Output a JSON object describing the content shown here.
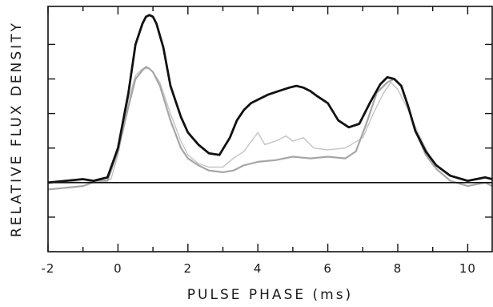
{
  "chart_data": {
    "type": "line",
    "title": "",
    "xlabel": "PULSE PHASE (ms)",
    "ylabel": "RELATIVE FLUX DENSITY",
    "xlim": [
      -2,
      10.7
    ],
    "ylim": [
      -2,
      5.1
    ],
    "x_ticks": [
      -2,
      0,
      2,
      4,
      6,
      8,
      10
    ],
    "x_tick_labels": [
      "-2",
      "0",
      "2",
      "4",
      "6",
      "8",
      "10"
    ],
    "y_ticks": [
      -1,
      0,
      1,
      2,
      3,
      4
    ],
    "baseline": 0,
    "grid": false,
    "legend": "none",
    "series": [
      {
        "color": "#111111",
        "x": [
          -2.0,
          -1.5,
          -1.0,
          -0.7,
          -0.3,
          0.0,
          0.3,
          0.5,
          0.7,
          0.8,
          0.9,
          1.0,
          1.1,
          1.3,
          1.5,
          1.8,
          2.0,
          2.3,
          2.6,
          2.9,
          3.2,
          3.4,
          3.6,
          3.8,
          4.0,
          4.3,
          4.6,
          4.9,
          5.1,
          5.3,
          5.5,
          5.7,
          6.0,
          6.3,
          6.6,
          6.9,
          7.2,
          7.5,
          7.7,
          7.9,
          8.1,
          8.3,
          8.5,
          8.8,
          9.1,
          9.5,
          10.0,
          10.5,
          10.7
        ],
        "y": [
          0.0,
          0.05,
          0.1,
          0.05,
          0.15,
          1.0,
          2.6,
          4.0,
          4.6,
          4.8,
          4.85,
          4.8,
          4.6,
          3.9,
          2.8,
          1.9,
          1.45,
          1.1,
          0.85,
          0.8,
          1.3,
          1.8,
          2.1,
          2.3,
          2.4,
          2.55,
          2.65,
          2.75,
          2.8,
          2.75,
          2.65,
          2.5,
          2.3,
          1.8,
          1.6,
          1.7,
          2.3,
          2.85,
          3.05,
          3.0,
          2.8,
          2.2,
          1.5,
          0.9,
          0.5,
          0.2,
          0.05,
          0.15,
          0.1
        ]
      },
      {
        "color": "#a6a6a6",
        "x": [
          -2.0,
          -1.5,
          -1.0,
          -0.6,
          -0.3,
          0.0,
          0.3,
          0.5,
          0.7,
          0.8,
          0.9,
          1.0,
          1.2,
          1.5,
          1.8,
          2.0,
          2.3,
          2.6,
          3.0,
          3.3,
          3.6,
          4.0,
          4.5,
          5.0,
          5.5,
          6.0,
          6.5,
          6.8,
          7.1,
          7.4,
          7.7,
          7.9,
          8.1,
          8.3,
          8.5,
          8.8,
          9.1,
          9.5,
          10.0,
          10.5,
          10.7
        ],
        "y": [
          -0.2,
          -0.15,
          -0.1,
          0.05,
          0.05,
          0.9,
          2.2,
          3.0,
          3.25,
          3.35,
          3.3,
          3.2,
          2.8,
          1.8,
          1.0,
          0.7,
          0.5,
          0.35,
          0.3,
          0.35,
          0.5,
          0.6,
          0.65,
          0.75,
          0.7,
          0.75,
          0.7,
          0.9,
          1.7,
          2.6,
          2.9,
          3.0,
          2.8,
          2.2,
          1.5,
          0.8,
          0.4,
          0.05,
          -0.1,
          0.0,
          -0.1
        ]
      },
      {
        "color": "#c4c4c4",
        "x": [
          -2.0,
          -1.5,
          -1.0,
          -0.5,
          -0.2,
          0.0,
          0.3,
          0.5,
          0.7,
          0.9,
          1.0,
          1.2,
          1.5,
          1.8,
          2.0,
          2.3,
          2.6,
          3.0,
          3.3,
          3.6,
          4.0,
          4.2,
          4.5,
          4.8,
          5.0,
          5.3,
          5.6,
          6.0,
          6.5,
          7.0,
          7.3,
          7.6,
          7.8,
          8.0,
          8.3,
          8.6,
          9.0,
          9.5,
          10.0,
          10.5,
          10.7
        ],
        "y": [
          0.0,
          0.05,
          0.0,
          0.05,
          0.1,
          0.8,
          2.4,
          3.1,
          3.3,
          3.3,
          3.2,
          2.9,
          2.0,
          1.2,
          0.8,
          0.55,
          0.45,
          0.45,
          0.7,
          0.9,
          1.45,
          1.1,
          1.2,
          1.35,
          1.2,
          1.3,
          1.0,
          0.95,
          1.0,
          1.3,
          2.0,
          2.6,
          2.9,
          2.7,
          2.1,
          1.4,
          0.6,
          0.2,
          0.05,
          0.15,
          0.1
        ]
      }
    ]
  }
}
